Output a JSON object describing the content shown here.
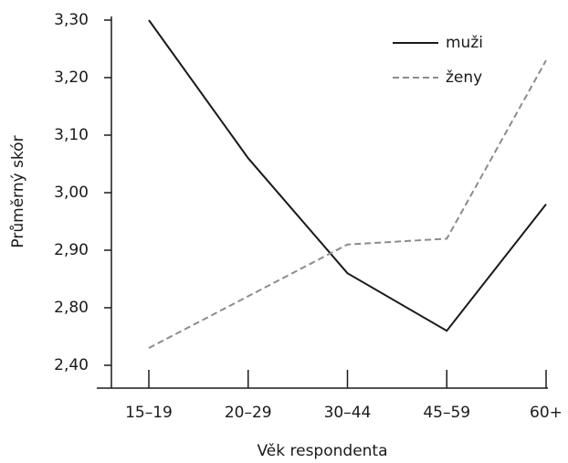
{
  "chart_data": {
    "type": "line",
    "xlabel": "Věk respondenta",
    "ylabel": "Průměrný skór",
    "categories": [
      "15–19",
      "20–29",
      "30–44",
      "45–59",
      "60+"
    ],
    "series": [
      {
        "name": "muži",
        "color": "#1a1a1a",
        "linestyle": "solid",
        "values": [
          3.3,
          3.06,
          2.86,
          2.76,
          2.98
        ]
      },
      {
        "name": "ženy",
        "color": "#8c8c8c",
        "linestyle": "dashed",
        "values": [
          2.73,
          2.82,
          2.91,
          2.92,
          3.23
        ]
      }
    ],
    "ylim": [
      2.4,
      3.3
    ],
    "y_break": [
      2.4,
      2.7
    ],
    "yticks": [
      {
        "value": 3.3,
        "label": "3,30"
      },
      {
        "value": 3.2,
        "label": "3,20"
      },
      {
        "value": 3.1,
        "label": "3,10"
      },
      {
        "value": 3.0,
        "label": "3,00"
      },
      {
        "value": 2.9,
        "label": "2,90"
      },
      {
        "value": 2.8,
        "label": "2,80"
      },
      {
        "value": 2.4,
        "label": "2,40"
      }
    ],
    "legend": "upper right",
    "grid": false
  }
}
